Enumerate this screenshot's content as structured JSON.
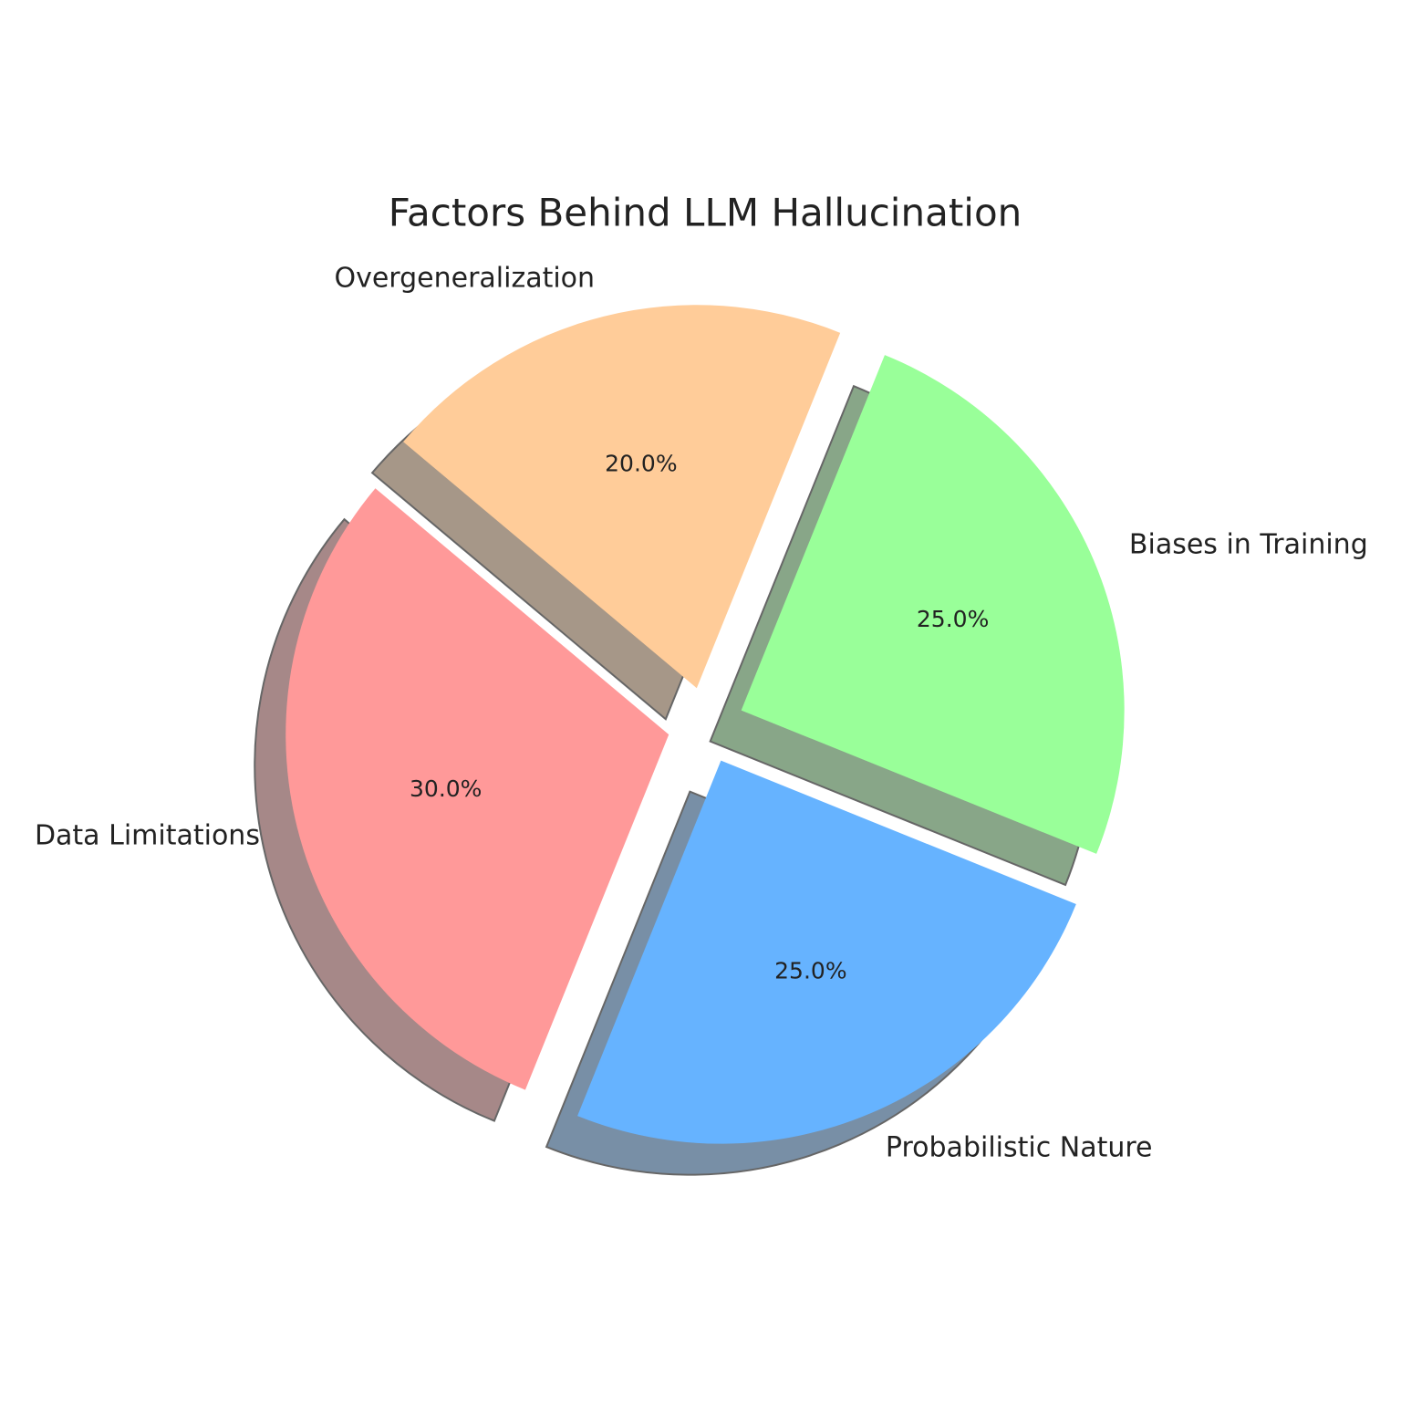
{
  "chart_data": {
    "type": "pie",
    "title": "Factors Behind LLM Hallucination",
    "categories": [
      "Data Limitations",
      "Probabilistic Nature",
      "Biases in Training",
      "Overgeneralization"
    ],
    "values": [
      30,
      25,
      25,
      20
    ],
    "value_labels": [
      "30.0%",
      "25.0%",
      "25.0%",
      "20.0%"
    ],
    "colors": [
      "#ff9999",
      "#66b3ff",
      "#99ff99",
      "#ffcc99"
    ],
    "startangle": 140,
    "explode": [
      0.1,
      0.1,
      0.1,
      0.1
    ],
    "shadow": true
  }
}
